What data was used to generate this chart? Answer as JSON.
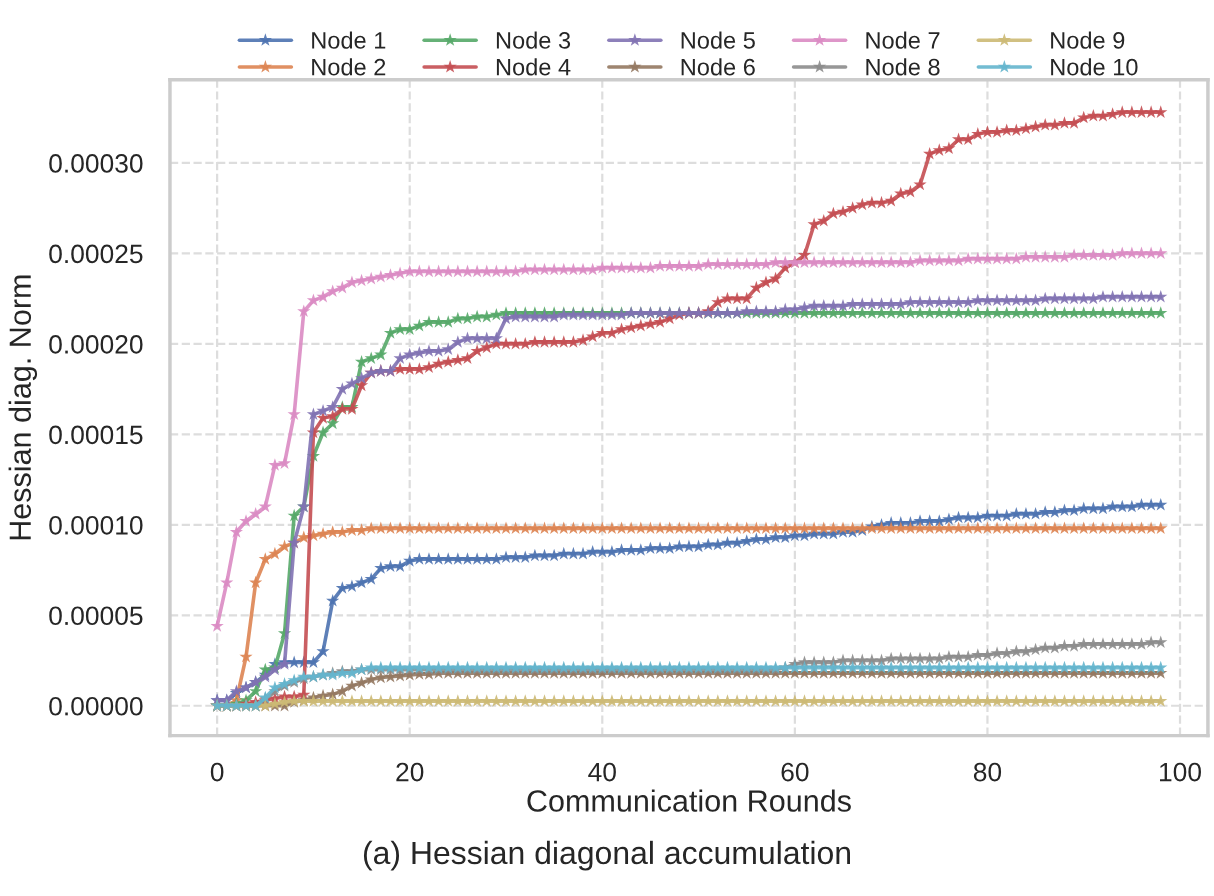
{
  "chart_data": {
    "type": "line",
    "xlabel": "Communication Rounds",
    "ylabel": "Hessian diag. Norm",
    "annotations": [
      "(a) Hessian diagonal accumulation"
    ],
    "x": [
      0,
      1,
      2,
      3,
      4,
      5,
      6,
      7,
      8,
      9,
      10,
      11,
      12,
      13,
      14,
      15,
      16,
      17,
      18,
      19,
      20,
      21,
      22,
      23,
      24,
      25,
      26,
      27,
      28,
      29,
      30,
      31,
      32,
      33,
      34,
      35,
      36,
      37,
      38,
      39,
      40,
      41,
      42,
      43,
      44,
      45,
      46,
      47,
      48,
      49,
      50,
      51,
      52,
      53,
      54,
      55,
      56,
      57,
      58,
      59,
      60,
      61,
      62,
      63,
      64,
      65,
      66,
      67,
      68,
      69,
      70,
      71,
      72,
      73,
      74,
      75,
      76,
      77,
      78,
      79,
      80,
      81,
      82,
      83,
      84,
      85,
      86,
      87,
      88,
      89,
      90,
      91,
      92,
      93,
      94,
      95,
      96,
      97,
      98
    ],
    "xlim": [
      -4.9,
      102.9
    ],
    "xticks": [
      0,
      20,
      40,
      60,
      80,
      100
    ],
    "ylim": [
      -1.65e-05,
      0.000346
    ],
    "yticks": [
      {
        "value": 0,
        "label": "0.00000"
      },
      {
        "value": 5e-05,
        "label": "0.00005"
      },
      {
        "value": 0.0001,
        "label": "0.00010"
      },
      {
        "value": 0.00015,
        "label": "0.00015"
      },
      {
        "value": 0.0002,
        "label": "0.00020"
      },
      {
        "value": 0.00025,
        "label": "0.00025"
      },
      {
        "value": 0.0003,
        "label": "0.00030"
      }
    ],
    "grid": true,
    "legend": "top",
    "marker": "star",
    "line_style": "solid",
    "series": [
      {
        "name": "Node 1",
        "color": "#4c72b0",
        "values": [
          3e-06,
          3e-06,
          7e-06,
          1e-05,
          1.3e-05,
          1.7e-05,
          2.3e-05,
          2.4e-05,
          2.4e-05,
          2.4e-05,
          2.4e-05,
          3e-05,
          5.8e-05,
          6.5e-05,
          6.6e-05,
          6.8e-05,
          7e-05,
          7.6e-05,
          7.7e-05,
          7.7e-05,
          8e-05,
          8.1e-05,
          8.1e-05,
          8.1e-05,
          8.1e-05,
          8.1e-05,
          8.1e-05,
          8.1e-05,
          8.1e-05,
          8.1e-05,
          8.2e-05,
          8.2e-05,
          8.2e-05,
          8.3e-05,
          8.3e-05,
          8.3e-05,
          8.4e-05,
          8.4e-05,
          8.4e-05,
          8.5e-05,
          8.5e-05,
          8.5e-05,
          8.6e-05,
          8.6e-05,
          8.6e-05,
          8.7e-05,
          8.7e-05,
          8.7e-05,
          8.8e-05,
          8.8e-05,
          8.8e-05,
          8.9e-05,
          8.9e-05,
          9e-05,
          9e-05,
          9.1e-05,
          9.2e-05,
          9.2e-05,
          9.3e-05,
          9.3e-05,
          9.4e-05,
          9.4e-05,
          9.5e-05,
          9.5e-05,
          9.5e-05,
          9.6e-05,
          9.6e-05,
          9.7e-05,
          9.9e-05,
          0.0001,
          0.000101,
          0.000101,
          0.000101,
          0.000102,
          0.000102,
          0.000102,
          0.000103,
          0.000104,
          0.000104,
          0.000104,
          0.000105,
          0.000105,
          0.000105,
          0.000106,
          0.000106,
          0.000106,
          0.000107,
          0.000107,
          0.000108,
          0.000108,
          0.000109,
          0.000109,
          0.000109,
          0.00011,
          0.00011,
          0.00011,
          0.000111,
          0.000111,
          0.000111
        ]
      },
      {
        "name": "Node 2",
        "color": "#dd8452",
        "values": [
          0,
          0,
          3e-06,
          2.7e-05,
          6.8e-05,
          8.1e-05,
          8.4e-05,
          8.8e-05,
          9e-05,
          9.3e-05,
          9.4e-05,
          9.5e-05,
          9.6e-05,
          9.6e-05,
          9.7e-05,
          9.7e-05,
          9.8e-05,
          9.8e-05,
          9.8e-05,
          9.8e-05,
          9.8e-05,
          9.8e-05,
          9.8e-05,
          9.8e-05,
          9.8e-05,
          9.8e-05,
          9.8e-05,
          9.8e-05,
          9.8e-05,
          9.8e-05,
          9.8e-05,
          9.8e-05,
          9.8e-05,
          9.8e-05,
          9.8e-05,
          9.8e-05,
          9.8e-05,
          9.8e-05,
          9.8e-05,
          9.8e-05,
          9.8e-05,
          9.8e-05,
          9.8e-05,
          9.8e-05,
          9.8e-05,
          9.8e-05,
          9.8e-05,
          9.8e-05,
          9.8e-05,
          9.8e-05,
          9.8e-05,
          9.8e-05,
          9.8e-05,
          9.8e-05,
          9.8e-05,
          9.8e-05,
          9.8e-05,
          9.8e-05,
          9.8e-05,
          9.8e-05,
          9.8e-05,
          9.8e-05,
          9.8e-05,
          9.8e-05,
          9.8e-05,
          9.8e-05,
          9.8e-05,
          9.8e-05,
          9.8e-05,
          9.8e-05,
          9.8e-05,
          9.8e-05,
          9.8e-05,
          9.8e-05,
          9.8e-05,
          9.8e-05,
          9.8e-05,
          9.8e-05,
          9.8e-05,
          9.8e-05,
          9.8e-05,
          9.8e-05,
          9.8e-05,
          9.8e-05,
          9.8e-05,
          9.8e-05,
          9.8e-05,
          9.8e-05,
          9.8e-05,
          9.8e-05,
          9.8e-05,
          9.8e-05,
          9.8e-05,
          9.8e-05,
          9.8e-05,
          9.8e-05,
          9.8e-05,
          9.8e-05,
          9.8e-05
        ]
      },
      {
        "name": "Node 3",
        "color": "#55a868",
        "values": [
          0,
          0,
          1e-06,
          3e-06,
          8e-06,
          2e-05,
          2.1e-05,
          4e-05,
          0.000105,
          0.00011,
          0.000138,
          0.000151,
          0.000156,
          0.000165,
          0.000165,
          0.00019,
          0.000192,
          0.000194,
          0.000206,
          0.000208,
          0.000208,
          0.00021,
          0.000212,
          0.000212,
          0.000212,
          0.000214,
          0.000214,
          0.000215,
          0.000215,
          0.000216,
          0.000217,
          0.000217,
          0.000217,
          0.000217,
          0.000217,
          0.000217,
          0.000217,
          0.000217,
          0.000217,
          0.000217,
          0.000217,
          0.000217,
          0.000217,
          0.000217,
          0.000217,
          0.000217,
          0.000217,
          0.000217,
          0.000217,
          0.000217,
          0.000217,
          0.000217,
          0.000217,
          0.000217,
          0.000217,
          0.000217,
          0.000217,
          0.000217,
          0.000217,
          0.000217,
          0.000217,
          0.000217,
          0.000217,
          0.000217,
          0.000217,
          0.000217,
          0.000217,
          0.000217,
          0.000217,
          0.000217,
          0.000217,
          0.000217,
          0.000217,
          0.000217,
          0.000217,
          0.000217,
          0.000217,
          0.000217,
          0.000217,
          0.000217,
          0.000217,
          0.000217,
          0.000217,
          0.000217,
          0.000217,
          0.000217,
          0.000217,
          0.000217,
          0.000217,
          0.000217,
          0.000217,
          0.000217,
          0.000217,
          0.000217,
          0.000217,
          0.000217,
          0.000217,
          0.000217,
          0.000217
        ]
      },
      {
        "name": "Node 4",
        "color": "#c44e52",
        "values": [
          0,
          0,
          0,
          1e-06,
          2e-06,
          3e-06,
          4e-06,
          5e-06,
          5e-06,
          6e-06,
          0.000151,
          0.000159,
          0.00016,
          0.000164,
          0.000164,
          0.000177,
          0.000184,
          0.000185,
          0.000185,
          0.000186,
          0.000186,
          0.000186,
          0.000187,
          0.000189,
          0.00019,
          0.000191,
          0.000192,
          0.000196,
          0.000198,
          0.0002,
          0.0002,
          0.0002,
          0.0002,
          0.000201,
          0.000201,
          0.000201,
          0.000201,
          0.000201,
          0.000202,
          0.000204,
          0.000206,
          0.000206,
          0.000208,
          0.000209,
          0.00021,
          0.000211,
          0.000212,
          0.000214,
          0.000216,
          0.000217,
          0.000217,
          0.000218,
          0.000223,
          0.000225,
          0.000225,
          0.000225,
          0.000231,
          0.000234,
          0.000236,
          0.000242,
          0.000245,
          0.000249,
          0.000266,
          0.000268,
          0.000272,
          0.000273,
          0.000275,
          0.000277,
          0.000278,
          0.000278,
          0.000279,
          0.000283,
          0.000284,
          0.000288,
          0.000305,
          0.000307,
          0.000308,
          0.000313,
          0.000313,
          0.000316,
          0.000317,
          0.000317,
          0.000318,
          0.000318,
          0.000319,
          0.00032,
          0.000321,
          0.000321,
          0.000322,
          0.000322,
          0.000325,
          0.000326,
          0.000326,
          0.000327,
          0.000328,
          0.000328,
          0.000328,
          0.000328,
          0.000328
        ]
      },
      {
        "name": "Node 5",
        "color": "#8172b3",
        "values": [
          3e-06,
          3e-06,
          8e-06,
          1e-05,
          1.3e-05,
          1.6e-05,
          2e-05,
          2.3e-05,
          9e-05,
          0.00011,
          0.000161,
          0.000163,
          0.000165,
          0.000175,
          0.000178,
          0.000181,
          0.000184,
          0.000185,
          0.000185,
          0.000192,
          0.000194,
          0.000195,
          0.000196,
          0.000196,
          0.000197,
          0.000201,
          0.000203,
          0.000203,
          0.000203,
          0.000203,
          0.000214,
          0.000215,
          0.000215,
          0.000215,
          0.000215,
          0.000215,
          0.000216,
          0.000216,
          0.000216,
          0.000216,
          0.000216,
          0.000216,
          0.000216,
          0.000217,
          0.000217,
          0.000217,
          0.000217,
          0.000217,
          0.000217,
          0.000217,
          0.000217,
          0.000217,
          0.000217,
          0.000217,
          0.000217,
          0.000218,
          0.000218,
          0.000218,
          0.000218,
          0.000219,
          0.000219,
          0.00022,
          0.000221,
          0.000221,
          0.000221,
          0.000221,
          0.000222,
          0.000222,
          0.000222,
          0.000222,
          0.000222,
          0.000222,
          0.000223,
          0.000223,
          0.000223,
          0.000223,
          0.000223,
          0.000223,
          0.000223,
          0.000224,
          0.000224,
          0.000224,
          0.000224,
          0.000224,
          0.000224,
          0.000224,
          0.000225,
          0.000225,
          0.000225,
          0.000225,
          0.000225,
          0.000225,
          0.000226,
          0.000226,
          0.000226,
          0.000226,
          0.000226,
          0.000226,
          0.000226
        ]
      },
      {
        "name": "Node 6",
        "color": "#937860",
        "values": [
          0,
          0,
          0,
          0,
          0,
          0,
          0,
          0,
          2e-06,
          3e-06,
          4.5e-06,
          5.5e-06,
          6.3e-06,
          8e-06,
          1.1e-05,
          1.26e-05,
          1.45e-05,
          1.56e-05,
          1.6e-05,
          1.65e-05,
          1.7e-05,
          1.75e-05,
          1.75e-05,
          1.8e-05,
          1.8e-05,
          1.8e-05,
          1.8e-05,
          1.8e-05,
          1.8e-05,
          1.8e-05,
          1.8e-05,
          1.8e-05,
          1.8e-05,
          1.8e-05,
          1.8e-05,
          1.8e-05,
          1.8e-05,
          1.8e-05,
          1.8e-05,
          1.8e-05,
          1.8e-05,
          1.8e-05,
          1.8e-05,
          1.8e-05,
          1.8e-05,
          1.8e-05,
          1.8e-05,
          1.8e-05,
          1.8e-05,
          1.8e-05,
          1.8e-05,
          1.8e-05,
          1.8e-05,
          1.8e-05,
          1.8e-05,
          1.8e-05,
          1.8e-05,
          1.8e-05,
          1.8e-05,
          1.8e-05,
          1.8e-05,
          1.8e-05,
          1.8e-05,
          1.8e-05,
          1.8e-05,
          1.8e-05,
          1.8e-05,
          1.8e-05,
          1.8e-05,
          1.8e-05,
          1.8e-05,
          1.8e-05,
          1.8e-05,
          1.8e-05,
          1.8e-05,
          1.8e-05,
          1.8e-05,
          1.8e-05,
          1.8e-05,
          1.8e-05,
          1.8e-05,
          1.8e-05,
          1.8e-05,
          1.8e-05,
          1.8e-05,
          1.8e-05,
          1.8e-05,
          1.8e-05,
          1.8e-05,
          1.8e-05,
          1.8e-05,
          1.8e-05,
          1.8e-05,
          1.8e-05,
          1.8e-05,
          1.8e-05,
          1.8e-05,
          1.8e-05,
          1.8e-05
        ]
      },
      {
        "name": "Node 7",
        "color": "#da8bc3",
        "values": [
          4.4e-05,
          6.8e-05,
          9.6e-05,
          0.000102,
          0.000106,
          0.00011,
          0.000133,
          0.000134,
          0.000161,
          0.000218,
          0.000224,
          0.000226,
          0.000229,
          0.000231,
          0.000234,
          0.000235,
          0.000236,
          0.000237,
          0.000238,
          0.000239,
          0.00024,
          0.00024,
          0.00024,
          0.00024,
          0.00024,
          0.00024,
          0.00024,
          0.00024,
          0.00024,
          0.00024,
          0.00024,
          0.00024,
          0.000241,
          0.000241,
          0.000241,
          0.000241,
          0.000241,
          0.000241,
          0.000241,
          0.000241,
          0.000242,
          0.000242,
          0.000242,
          0.000242,
          0.000242,
          0.000242,
          0.000243,
          0.000243,
          0.000243,
          0.000243,
          0.000243,
          0.000244,
          0.000244,
          0.000244,
          0.000244,
          0.000244,
          0.000244,
          0.000244,
          0.000245,
          0.000245,
          0.000245,
          0.000245,
          0.000245,
          0.000245,
          0.000245,
          0.000245,
          0.000245,
          0.000245,
          0.000245,
          0.000245,
          0.000245,
          0.000245,
          0.000245,
          0.000246,
          0.000246,
          0.000246,
          0.000246,
          0.000246,
          0.000247,
          0.000247,
          0.000247,
          0.000247,
          0.000247,
          0.000247,
          0.000248,
          0.000248,
          0.000248,
          0.000248,
          0.000248,
          0.000249,
          0.000249,
          0.000249,
          0.000249,
          0.000249,
          0.00025,
          0.00025,
          0.00025,
          0.00025,
          0.00025
        ]
      },
      {
        "name": "Node 8",
        "color": "#8c8c8c",
        "values": [
          0,
          0,
          0,
          0,
          0,
          4e-06,
          8e-06,
          1.1e-05,
          1.3e-05,
          1.5e-05,
          1.6e-05,
          1.7e-05,
          1.8e-05,
          1.9e-05,
          1.9e-05,
          2e-05,
          2e-05,
          2e-05,
          2e-05,
          2e-05,
          2e-05,
          2e-05,
          2e-05,
          2e-05,
          2e-05,
          2e-05,
          2e-05,
          2e-05,
          2e-05,
          2e-05,
          2e-05,
          2e-05,
          2e-05,
          2e-05,
          2e-05,
          2e-05,
          2e-05,
          2e-05,
          2e-05,
          2e-05,
          2e-05,
          2e-05,
          2e-05,
          2e-05,
          2e-05,
          2e-05,
          2e-05,
          2e-05,
          2e-05,
          2e-05,
          2e-05,
          2e-05,
          2e-05,
          2e-05,
          2e-05,
          2e-05,
          2e-05,
          2e-05,
          2e-05,
          2.1e-05,
          2.3e-05,
          2.4e-05,
          2.4e-05,
          2.4e-05,
          2.4e-05,
          2.5e-05,
          2.5e-05,
          2.5e-05,
          2.5e-05,
          2.5e-05,
          2.6e-05,
          2.6e-05,
          2.6e-05,
          2.6e-05,
          2.6e-05,
          2.6e-05,
          2.7e-05,
          2.7e-05,
          2.7e-05,
          2.8e-05,
          2.8e-05,
          2.9e-05,
          2.9e-05,
          3e-05,
          3e-05,
          3.1e-05,
          3.2e-05,
          3.2e-05,
          3.3e-05,
          3.3e-05,
          3.4e-05,
          3.4e-05,
          3.4e-05,
          3.4e-05,
          3.4e-05,
          3.4e-05,
          3.4e-05,
          3.5e-05,
          3.5e-05
        ]
      },
      {
        "name": "Node 9",
        "color": "#ccb974",
        "values": [
          0,
          0,
          0,
          0,
          0,
          0,
          1e-06,
          2e-06,
          2.5e-06,
          2.5e-06,
          2.5e-06,
          2.5e-06,
          2.5e-06,
          2.5e-06,
          2.5e-06,
          2.5e-06,
          2.5e-06,
          2.5e-06,
          2.5e-06,
          2.5e-06,
          2.5e-06,
          2.5e-06,
          2.5e-06,
          2.5e-06,
          2.5e-06,
          2.5e-06,
          2.5e-06,
          2.5e-06,
          2.5e-06,
          2.5e-06,
          2.5e-06,
          2.5e-06,
          2.5e-06,
          2.5e-06,
          2.5e-06,
          2.5e-06,
          2.5e-06,
          2.5e-06,
          2.5e-06,
          2.5e-06,
          2.5e-06,
          2.5e-06,
          2.5e-06,
          2.5e-06,
          2.5e-06,
          2.5e-06,
          2.5e-06,
          2.5e-06,
          2.5e-06,
          2.5e-06,
          2.5e-06,
          2.5e-06,
          2.5e-06,
          2.5e-06,
          2.5e-06,
          2.5e-06,
          2.5e-06,
          2.5e-06,
          2.5e-06,
          2.5e-06,
          2.5e-06,
          2.5e-06,
          2.5e-06,
          2.5e-06,
          2.5e-06,
          2.5e-06,
          2.5e-06,
          2.5e-06,
          2.5e-06,
          2.5e-06,
          2.5e-06,
          2.5e-06,
          2.5e-06,
          2.5e-06,
          2.5e-06,
          2.5e-06,
          2.5e-06,
          2.5e-06,
          2.5e-06,
          2.5e-06,
          2.5e-06,
          2.5e-06,
          2.5e-06,
          2.5e-06,
          2.5e-06,
          2.5e-06,
          2.5e-06,
          2.5e-06,
          2.5e-06,
          2.5e-06,
          2.5e-06,
          2.5e-06,
          2.5e-06,
          2.5e-06,
          2.5e-06,
          2.5e-06,
          2.5e-06,
          2.5e-06,
          2.5e-06
        ]
      },
      {
        "name": "Node 10",
        "color": "#64b5cd",
        "values": [
          0,
          0,
          0,
          0,
          0,
          4.5e-06,
          1e-05,
          1.2e-05,
          1.4e-05,
          1.6e-05,
          1.6e-05,
          1.7e-05,
          1.7e-05,
          1.8e-05,
          1.8e-05,
          2e-05,
          2.1e-05,
          2.1e-05,
          2.1e-05,
          2.1e-05,
          2.1e-05,
          2.1e-05,
          2.1e-05,
          2.1e-05,
          2.1e-05,
          2.1e-05,
          2.1e-05,
          2.1e-05,
          2.1e-05,
          2.1e-05,
          2.1e-05,
          2.1e-05,
          2.1e-05,
          2.1e-05,
          2.1e-05,
          2.1e-05,
          2.1e-05,
          2.1e-05,
          2.1e-05,
          2.1e-05,
          2.1e-05,
          2.1e-05,
          2.1e-05,
          2.1e-05,
          2.1e-05,
          2.1e-05,
          2.1e-05,
          2.1e-05,
          2.1e-05,
          2.1e-05,
          2.1e-05,
          2.1e-05,
          2.1e-05,
          2.1e-05,
          2.1e-05,
          2.1e-05,
          2.1e-05,
          2.1e-05,
          2.1e-05,
          2.1e-05,
          2.1e-05,
          2.1e-05,
          2.1e-05,
          2.1e-05,
          2.1e-05,
          2.1e-05,
          2.1e-05,
          2.1e-05,
          2.1e-05,
          2.1e-05,
          2.1e-05,
          2.1e-05,
          2.1e-05,
          2.1e-05,
          2.1e-05,
          2.1e-05,
          2.1e-05,
          2.1e-05,
          2.1e-05,
          2.1e-05,
          2.1e-05,
          2.1e-05,
          2.1e-05,
          2.1e-05,
          2.1e-05,
          2.1e-05,
          2.1e-05,
          2.1e-05,
          2.1e-05,
          2.1e-05,
          2.1e-05,
          2.1e-05,
          2.1e-05,
          2.1e-05,
          2.1e-05,
          2.1e-05,
          2.1e-05,
          2.1e-05,
          2.1e-05
        ]
      }
    ]
  }
}
